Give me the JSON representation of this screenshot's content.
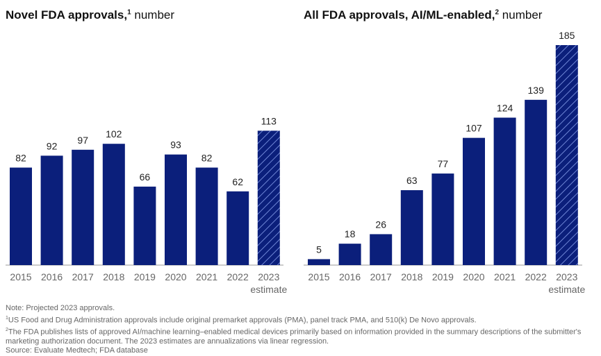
{
  "colors": {
    "bar": "#0b1f7b",
    "hatch": "#6f86d6",
    "axis": "#999999",
    "text": "#222222"
  },
  "chart_data": [
    {
      "type": "bar",
      "title": "Novel FDA approvals,",
      "title_sup": "1",
      "title_suffix": "number",
      "categories": [
        "2015",
        "2016",
        "2017",
        "2018",
        "2019",
        "2020",
        "2021",
        "2022",
        "2023"
      ],
      "values": [
        82,
        92,
        97,
        102,
        66,
        93,
        82,
        62,
        113
      ],
      "estimate_label": "estimate",
      "hatched_last": true,
      "ylim": [
        0,
        185
      ]
    },
    {
      "type": "bar",
      "title": "All FDA approvals, AI/ML-enabled,",
      "title_sup": "2",
      "title_suffix": "number",
      "categories": [
        "2015",
        "2016",
        "2017",
        "2018",
        "2019",
        "2020",
        "2021",
        "2022",
        "2023"
      ],
      "values": [
        5,
        18,
        26,
        63,
        77,
        107,
        124,
        139,
        185
      ],
      "estimate_label": "estimate",
      "hatched_last": true,
      "ylim": [
        0,
        185
      ]
    }
  ],
  "notes": {
    "note": "Note: Projected 2023 approvals.",
    "fn1_mark": "1",
    "fn1": "US Food and Drug Administration approvals include original premarket approvals (PMA), panel track PMA, and 510(k) De Novo approvals.",
    "fn2_mark": "2",
    "fn2": "The FDA publishes lists of approved AI/machine learning–enabled medical devices primarily based on information provided in the summary descriptions of the submitter's marketing authorization document. The 2023 estimates are annualizations via linear regression.",
    "source": "Source: Evaluate Medtech; FDA database"
  }
}
